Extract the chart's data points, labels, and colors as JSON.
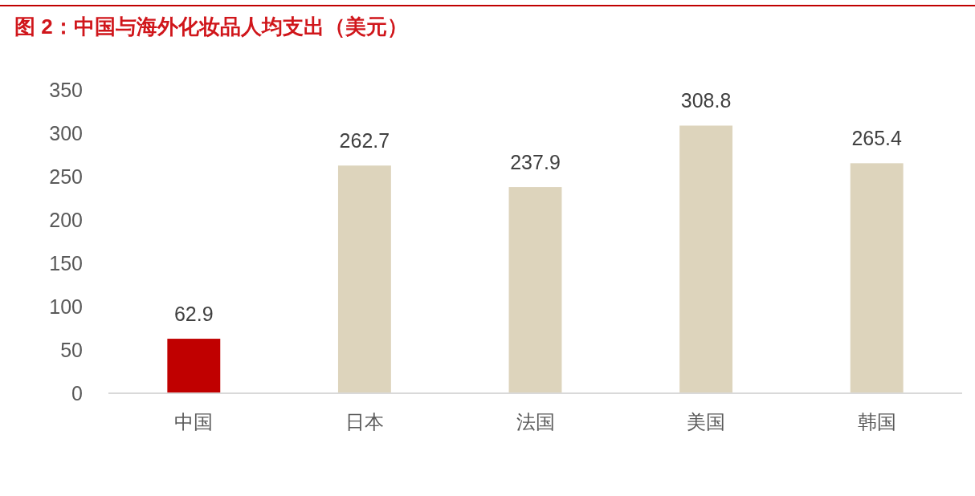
{
  "chart_data": {
    "type": "bar",
    "title": "图 2：中国与海外化妆品人均支出（美元）",
    "categories": [
      "中国",
      "日本",
      "法国",
      "美国",
      "韩国"
    ],
    "values": [
      62.9,
      262.7,
      237.9,
      308.8,
      265.4
    ],
    "colors": [
      "#c00000",
      "#ddd4bc",
      "#ddd4bc",
      "#ddd4bc",
      "#ddd4bc"
    ],
    "ylim": [
      0,
      350
    ],
    "yticks": [
      0,
      50,
      100,
      150,
      200,
      250,
      300,
      350
    ],
    "data_labels": true
  }
}
